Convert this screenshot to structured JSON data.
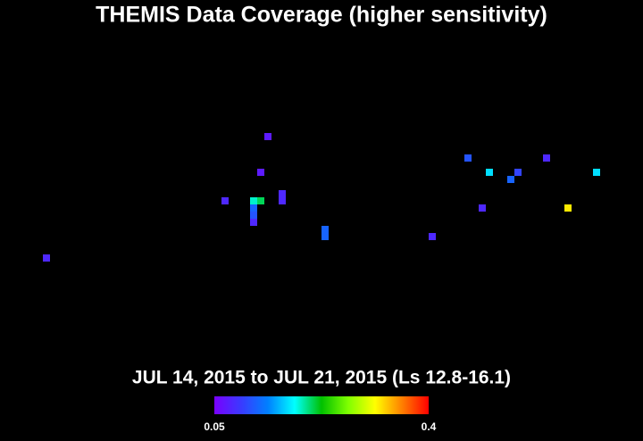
{
  "chart_data": {
    "type": "heatmap",
    "title": "THEMIS Data Coverage (higher sensitivity)",
    "subtitle": "JUL 14, 2015 to JUL 21, 2015 (Ls 12.8-16.1)",
    "x": [
      37,
      36,
      31,
      35,
      36,
      35,
      35,
      35,
      39,
      39,
      45,
      45,
      60,
      65,
      68,
      72,
      71,
      67,
      76,
      79,
      83,
      6
    ],
    "y": [
      18,
      23,
      27,
      27,
      27,
      28,
      29,
      30,
      26,
      27,
      31,
      32,
      32,
      21,
      23,
      23,
      24,
      28,
      21,
      28,
      23,
      35
    ],
    "values": [
      0.07,
      0.07,
      0.08,
      0.19,
      0.21,
      0.12,
      0.11,
      0.08,
      0.08,
      0.08,
      0.12,
      0.12,
      0.08,
      0.11,
      0.17,
      0.1,
      0.12,
      0.08,
      0.08,
      0.32,
      0.17,
      0.08
    ],
    "xlim": [
      0,
      90
    ],
    "ylim": [
      0,
      60
    ],
    "clim": [
      0.05,
      0.4
    ],
    "cticks": [
      0.05,
      0.4
    ],
    "colorscale": [
      "#7a00ff",
      "#3a3aff",
      "#0080ff",
      "#00ffff",
      "#00c000",
      "#80ff00",
      "#ffff00",
      "#ff8000",
      "#ff0000"
    ]
  }
}
